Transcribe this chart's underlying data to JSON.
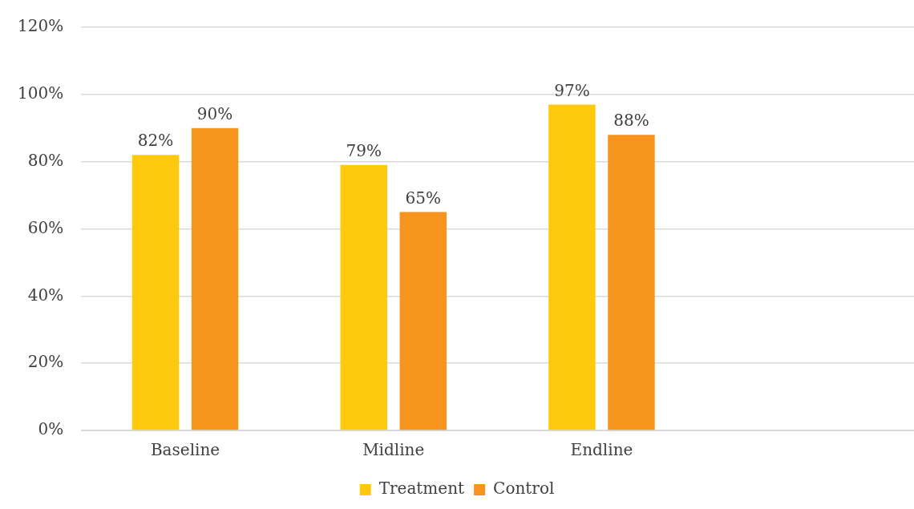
{
  "chart_data": {
    "type": "bar",
    "categories": [
      "Baseline",
      "Midline",
      "Endline",
      null
    ],
    "series": [
      {
        "name": "Treatment",
        "color": "#ffc90e",
        "values": [
          82,
          79,
          97,
          null
        ],
        "value_labels": [
          "82%",
          "79%",
          "97%",
          null
        ]
      },
      {
        "name": "Control",
        "color": "#f7941d",
        "values": [
          90,
          65,
          88,
          null
        ],
        "value_labels": [
          "90%",
          "65%",
          "88%",
          null
        ]
      }
    ],
    "ylim": [
      0,
      120
    ],
    "yticks": [
      {
        "value": 0,
        "label": "0%"
      },
      {
        "value": 20,
        "label": "20%"
      },
      {
        "value": 40,
        "label": "40%"
      },
      {
        "value": 60,
        "label": "60%"
      },
      {
        "value": 80,
        "label": "80%"
      },
      {
        "value": 100,
        "label": "100%"
      },
      {
        "value": 120,
        "label": "120%"
      }
    ],
    "grid": "y",
    "legend": "bottom"
  }
}
